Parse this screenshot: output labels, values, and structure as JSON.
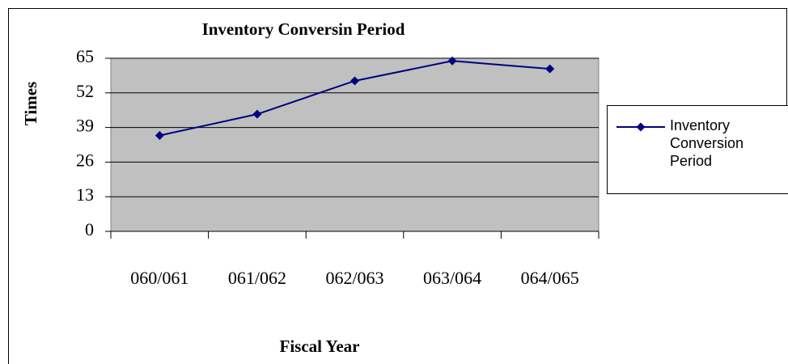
{
  "chart_data": {
    "type": "line",
    "title": "Inventory Conversin Period",
    "categories": [
      "060/061",
      "061/062",
      "062/063",
      "063/064",
      "064/065"
    ],
    "series": [
      {
        "name": "Inventory Conversion Period",
        "color": "#000080",
        "values": [
          36,
          44,
          56.5,
          64,
          61
        ]
      }
    ],
    "x_label": "Fiscal Year",
    "y_label": "Times",
    "ylim": [
      0,
      65
    ],
    "yticks": [
      0,
      13,
      26,
      39,
      52,
      65
    ],
    "grid": true,
    "legend": "right"
  }
}
